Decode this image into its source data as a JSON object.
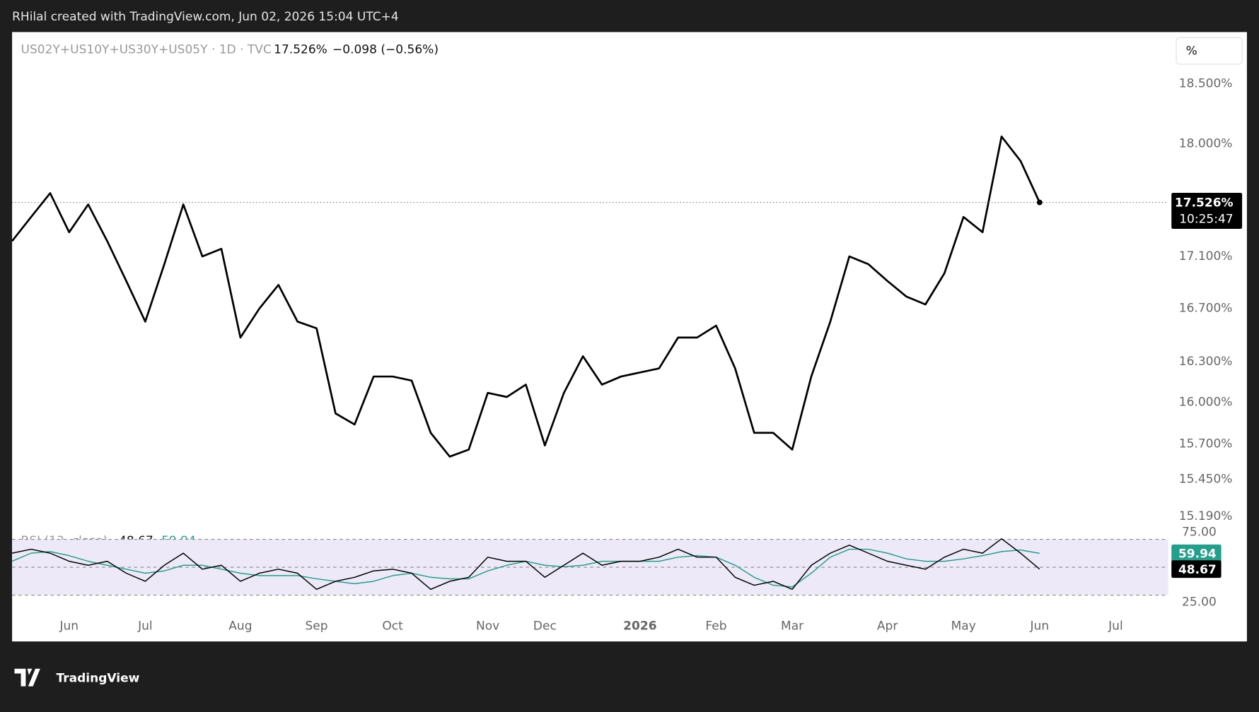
{
  "header": {
    "credit": "RHilal created with TradingView.com, Jun 02, 2026 15:04 UTC+4",
    "logo": "TradingView"
  },
  "chart_data": [
    {
      "type": "line",
      "title": "US02Y+US10Y+US30Y+US05Y · 1D · TVC",
      "last_label": "17.526%",
      "change_label": "−0.098 (−0.56%)",
      "countdown": "10:25:47",
      "unit_button": "%",
      "categories": [
        null,
        null,
        null,
        "Jun",
        null,
        null,
        null,
        "Jul",
        null,
        null,
        null,
        null,
        "Aug",
        null,
        null,
        null,
        "Sep",
        null,
        null,
        null,
        "Oct",
        null,
        null,
        null,
        null,
        "Nov",
        null,
        null,
        "Dec",
        null,
        null,
        null,
        null,
        "2026",
        null,
        null,
        null,
        "Feb",
        null,
        null,
        null,
        "Mar",
        null,
        null,
        null,
        null,
        "Apr",
        null,
        null,
        null,
        "May",
        null,
        null,
        null,
        "Jun",
        null,
        null,
        null,
        "Jul",
        null,
        null
      ],
      "series": [
        {
          "color": "#000000",
          "values": [
            17.22,
            17.41,
            17.6,
            17.29,
            17.51,
            17.22,
            16.91,
            16.6,
            17.04,
            17.51,
            17.1,
            17.16,
            16.48,
            16.7,
            16.88,
            16.6,
            16.55,
            15.92,
            15.84,
            16.19,
            16.19,
            16.16,
            15.78,
            15.61,
            15.66,
            16.07,
            16.04,
            16.13,
            15.69,
            16.07,
            16.34,
            16.13,
            16.19,
            16.22,
            16.25,
            16.48,
            16.48,
            16.57,
            16.25,
            15.78,
            15.78,
            15.66,
            16.19,
            16.6,
            17.1,
            17.04,
            16.91,
            16.79,
            16.73,
            16.97,
            17.41,
            17.29,
            18.06,
            17.86,
            17.526,
            null,
            null,
            null,
            null,
            null,
            null
          ]
        }
      ],
      "ylim": [
        15.13,
        18.94
      ],
      "log": true,
      "yticks": [
        {
          "value": 18.5,
          "label": "18.500%"
        },
        {
          "value": 18,
          "label": "18.000%"
        },
        {
          "value": 17.1,
          "label": "17.100%"
        },
        {
          "value": 16.7,
          "label": "16.700%"
        },
        {
          "value": 16.3,
          "label": "16.300%"
        },
        {
          "value": 16,
          "label": "16.000%"
        },
        {
          "value": 15.7,
          "label": "15.700%"
        },
        {
          "value": 15.45,
          "label": "15.450%"
        },
        {
          "value": 15.19,
          "label": "15.190%"
        }
      ]
    },
    {
      "type": "line",
      "title": "RSI (13, close)",
      "bands": [
        30,
        50,
        70
      ],
      "band_color": "#ede9f8",
      "series": [
        {
          "color": "#000000",
          "last_label": "48.67",
          "values": [
            60.1,
            62.9,
            60.1,
            54.3,
            51.4,
            54.3,
            45.7,
            39.9,
            51.4,
            60.1,
            48.6,
            51.4,
            39.9,
            45.7,
            48.6,
            45.7,
            34.2,
            39.9,
            42.8,
            47.4,
            48.6,
            45.7,
            34.2,
            39.9,
            42.8,
            57.2,
            54.3,
            54.3,
            42.8,
            51.4,
            60.1,
            51.4,
            54.3,
            54.3,
            57.2,
            62.9,
            57.2,
            57.2,
            42.8,
            37.1,
            39.9,
            34.2,
            51.4,
            60.1,
            65.8,
            60.1,
            54.3,
            51.4,
            48.6,
            57.2,
            62.9,
            60.1,
            70.4,
            60.1,
            48.67
          ]
        },
        {
          "color": "#22a08c",
          "last_label": "59.94",
          "values": [
            54.3,
            60.1,
            61.2,
            58.3,
            54.3,
            51.4,
            48.6,
            45.7,
            47.4,
            51.4,
            51.4,
            48.6,
            45.7,
            44.0,
            44.0,
            44.0,
            41.7,
            39.9,
            38.2,
            39.9,
            44.0,
            45.7,
            42.8,
            41.7,
            41.7,
            47.4,
            51.4,
            54.3,
            51.4,
            50.3,
            51.4,
            54.3,
            54.3,
            54.3,
            54.3,
            57.2,
            58.3,
            57.2,
            51.4,
            42.8,
            37.1,
            35.9,
            45.7,
            57.2,
            62.9,
            62.9,
            60.1,
            56.0,
            54.3,
            54.3,
            56.0,
            58.3,
            61.2,
            62.4,
            59.94
          ]
        }
      ],
      "ylim": [
        13.5,
        78.4
      ],
      "yticks": [
        {
          "value": 75,
          "label": "75.00"
        },
        {
          "value": 25,
          "label": "25.00"
        }
      ]
    }
  ]
}
